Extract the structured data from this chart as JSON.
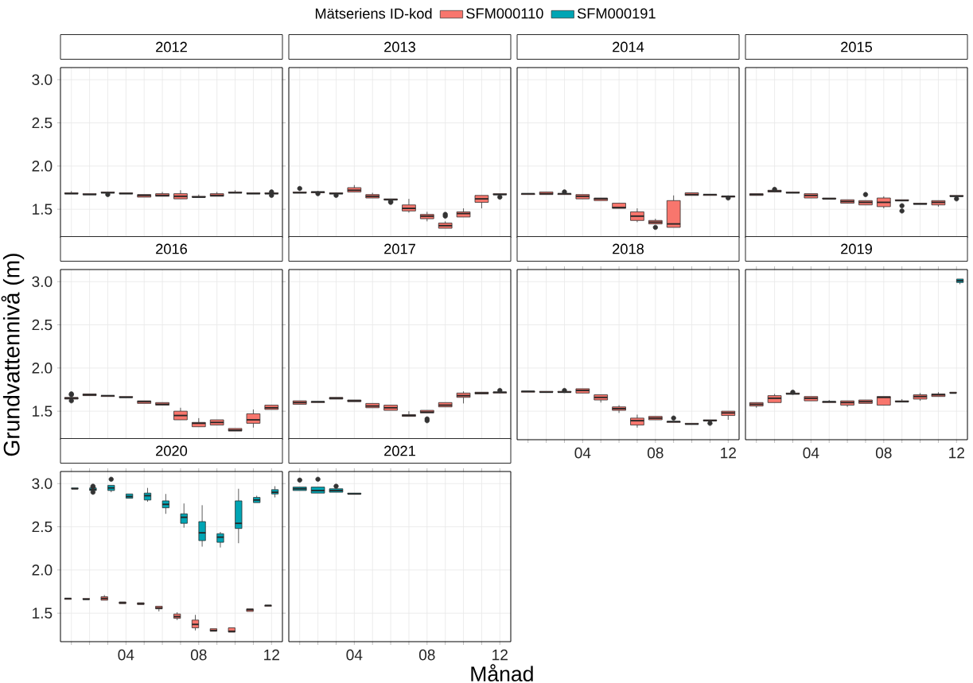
{
  "chart_data": [
    {
      "type": "box",
      "title": "2012",
      "categories": [
        null,
        null,
        null,
        "04",
        null,
        null,
        null,
        "08",
        null,
        null,
        null,
        "12"
      ],
      "ylim": [
        1.17,
        3.14
      ],
      "yticks": [
        {
          "value": 1.5,
          "label": "1.5"
        },
        {
          "value": 2,
          "label": "2.0"
        },
        {
          "value": 2.5,
          "label": "2.5"
        },
        {
          "value": 3,
          "label": "3.0"
        }
      ],
      "grid": true,
      "tick_labels": "y",
      "series": [
        {
          "color": "#F8766D",
          "boxes": [
            {
              "low": 1.68,
              "q1": 1.68,
              "median": 1.68,
              "q3": 1.69,
              "high": 1.71
            },
            {
              "low": 1.67,
              "q1": 1.67,
              "median": 1.67,
              "q3": 1.68,
              "high": 1.68
            },
            {
              "low": 1.69,
              "q1": 1.69,
              "median": 1.69,
              "q3": 1.7,
              "high": 1.7,
              "outliers": [
                1.67
              ]
            },
            {
              "low": 1.68,
              "q1": 1.68,
              "median": 1.68,
              "q3": 1.69,
              "high": 1.69
            },
            {
              "low": 1.64,
              "q1": 1.64,
              "median": 1.66,
              "q3": 1.67,
              "high": 1.67
            },
            {
              "low": 1.65,
              "q1": 1.65,
              "median": 1.66,
              "q3": 1.68,
              "high": 1.7
            },
            {
              "low": 1.62,
              "q1": 1.62,
              "median": 1.65,
              "q3": 1.68,
              "high": 1.72
            },
            {
              "low": 1.64,
              "q1": 1.64,
              "median": 1.64,
              "q3": 1.65,
              "high": 1.67
            },
            {
              "low": 1.65,
              "q1": 1.65,
              "median": 1.66,
              "q3": 1.68,
              "high": 1.7
            },
            {
              "low": 1.69,
              "q1": 1.69,
              "median": 1.69,
              "q3": 1.7,
              "high": 1.72
            },
            {
              "low": 1.68,
              "q1": 1.68,
              "median": 1.68,
              "q3": 1.69,
              "high": 1.69
            },
            {
              "low": 1.68,
              "q1": 1.68,
              "median": 1.68,
              "q3": 1.69,
              "high": 1.69,
              "outliers": [
                1.66,
                1.7
              ]
            }
          ]
        }
      ]
    },
    {
      "type": "box",
      "title": "2013",
      "categories": [
        null,
        null,
        null,
        "04",
        null,
        null,
        null,
        "08",
        null,
        null,
        null,
        "12"
      ],
      "ylim": [
        1.17,
        3.14
      ],
      "yticks": [
        1.5,
        2,
        2.5,
        3
      ],
      "grid": true,
      "tick_labels": false,
      "series": [
        {
          "color": "#F8766D",
          "boxes": [
            {
              "low": 1.69,
              "q1": 1.69,
              "median": 1.69,
              "q3": 1.7,
              "high": 1.7,
              "outliers": [
                1.74
              ]
            },
            {
              "low": 1.69,
              "q1": 1.69,
              "median": 1.7,
              "q3": 1.7,
              "high": 1.7,
              "outliers": [
                1.68
              ]
            },
            {
              "low": 1.68,
              "q1": 1.68,
              "median": 1.68,
              "q3": 1.69,
              "high": 1.69,
              "outliers": [
                1.66
              ]
            },
            {
              "low": 1.7,
              "q1": 1.7,
              "median": 1.72,
              "q3": 1.75,
              "high": 1.78
            },
            {
              "low": 1.63,
              "q1": 1.63,
              "median": 1.65,
              "q3": 1.67,
              "high": 1.69
            },
            {
              "low": 1.61,
              "q1": 1.61,
              "median": 1.61,
              "q3": 1.62,
              "high": 1.62,
              "outliers": [
                1.58,
                1.59
              ]
            },
            {
              "low": 1.46,
              "q1": 1.48,
              "median": 1.51,
              "q3": 1.55,
              "high": 1.62
            },
            {
              "low": 1.36,
              "q1": 1.39,
              "median": 1.42,
              "q3": 1.44,
              "high": 1.47
            },
            {
              "low": 1.28,
              "q1": 1.28,
              "median": 1.31,
              "q3": 1.34,
              "high": 1.36,
              "outliers": [
                1.42,
                1.44
              ]
            },
            {
              "low": 1.41,
              "q1": 1.41,
              "median": 1.45,
              "q3": 1.47,
              "high": 1.51
            },
            {
              "low": 1.51,
              "q1": 1.58,
              "median": 1.62,
              "q3": 1.66,
              "high": 1.66
            },
            {
              "low": 1.67,
              "q1": 1.67,
              "median": 1.67,
              "q3": 1.68,
              "high": 1.68,
              "outliers": [
                1.64
              ]
            }
          ]
        }
      ]
    },
    {
      "type": "box",
      "title": "2014",
      "categories": [
        null,
        null,
        null,
        "04",
        null,
        null,
        null,
        "08",
        null,
        null,
        null,
        "12"
      ],
      "ylim": [
        1.17,
        3.14
      ],
      "yticks": [
        1.5,
        2,
        2.5,
        3
      ],
      "grid": true,
      "tick_labels": false,
      "series": [
        {
          "color": "#F8766D",
          "boxes": [
            {
              "low": 1.67,
              "q1": 1.67,
              "median": 1.68,
              "q3": 1.68,
              "high": 1.68
            },
            {
              "low": 1.67,
              "q1": 1.67,
              "median": 1.68,
              "q3": 1.7,
              "high": 1.7
            },
            {
              "low": 1.67,
              "q1": 1.67,
              "median": 1.68,
              "q3": 1.68,
              "high": 1.68,
              "outliers": [
                1.7
              ]
            },
            {
              "low": 1.62,
              "q1": 1.62,
              "median": 1.65,
              "q3": 1.67,
              "high": 1.67
            },
            {
              "low": 1.6,
              "q1": 1.6,
              "median": 1.62,
              "q3": 1.63,
              "high": 1.63
            },
            {
              "low": 1.51,
              "q1": 1.51,
              "median": 1.52,
              "q3": 1.57,
              "high": 1.57
            },
            {
              "low": 1.35,
              "q1": 1.37,
              "median": 1.42,
              "q3": 1.47,
              "high": 1.51
            },
            {
              "low": 1.33,
              "q1": 1.33,
              "median": 1.35,
              "q3": 1.37,
              "high": 1.39,
              "outliers": [
                1.29
              ]
            },
            {
              "low": 1.29,
              "q1": 1.29,
              "median": 1.33,
              "q3": 1.6,
              "high": 1.66
            },
            {
              "low": 1.66,
              "q1": 1.66,
              "median": 1.67,
              "q3": 1.69,
              "high": 1.69
            },
            {
              "low": 1.66,
              "q1": 1.66,
              "median": 1.67,
              "q3": 1.67,
              "high": 1.67
            },
            {
              "low": 1.64,
              "q1": 1.64,
              "median": 1.65,
              "q3": 1.65,
              "high": 1.65,
              "outliers": [
                1.63
              ]
            }
          ]
        }
      ]
    },
    {
      "type": "box",
      "title": "2015",
      "categories": [
        null,
        null,
        null,
        "04",
        null,
        null,
        null,
        "08",
        null,
        null,
        null,
        "12"
      ],
      "ylim": [
        1.17,
        3.14
      ],
      "yticks": [
        1.5,
        2,
        2.5,
        3
      ],
      "grid": true,
      "tick_labels": false,
      "series": [
        {
          "color": "#F8766D",
          "boxes": [
            {
              "low": 1.66,
              "q1": 1.66,
              "median": 1.67,
              "q3": 1.68,
              "high": 1.68
            },
            {
              "low": 1.7,
              "q1": 1.7,
              "median": 1.71,
              "q3": 1.72,
              "high": 1.72,
              "outliers": [
                1.73
              ]
            },
            {
              "low": 1.69,
              "q1": 1.69,
              "median": 1.69,
              "q3": 1.7,
              "high": 1.7
            },
            {
              "low": 1.63,
              "q1": 1.63,
              "median": 1.66,
              "q3": 1.68,
              "high": 1.68
            },
            {
              "low": 1.62,
              "q1": 1.62,
              "median": 1.62,
              "q3": 1.63,
              "high": 1.63
            },
            {
              "low": 1.57,
              "q1": 1.57,
              "median": 1.59,
              "q3": 1.61,
              "high": 1.61
            },
            {
              "low": 1.55,
              "q1": 1.55,
              "median": 1.58,
              "q3": 1.6,
              "high": 1.6,
              "outliers": [
                1.67
              ]
            },
            {
              "low": 1.51,
              "q1": 1.53,
              "median": 1.58,
              "q3": 1.63,
              "high": 1.65
            },
            {
              "low": 1.6,
              "q1": 1.6,
              "median": 1.6,
              "q3": 1.61,
              "high": 1.61,
              "outliers": [
                1.48,
                1.54
              ]
            },
            {
              "low": 1.56,
              "q1": 1.56,
              "median": 1.56,
              "q3": 1.57,
              "high": 1.57
            },
            {
              "low": 1.53,
              "q1": 1.55,
              "median": 1.58,
              "q3": 1.6,
              "high": 1.6
            },
            {
              "low": 1.65,
              "q1": 1.65,
              "median": 1.65,
              "q3": 1.66,
              "high": 1.66,
              "outliers": [
                1.62
              ]
            }
          ]
        }
      ]
    },
    {
      "type": "box",
      "title": "2016",
      "ylabel": "Grundvattennivå (m)",
      "categories": [
        null,
        null,
        null,
        "04",
        null,
        null,
        null,
        "08",
        null,
        null,
        null,
        "12"
      ],
      "ylim": [
        1.17,
        3.14
      ],
      "yticks": [
        {
          "value": 1.5,
          "label": "1.5"
        },
        {
          "value": 2,
          "label": "2.0"
        },
        {
          "value": 2.5,
          "label": "2.5"
        },
        {
          "value": 3,
          "label": "3.0"
        }
      ],
      "grid": true,
      "tick_labels": "y",
      "series": [
        {
          "color": "#F8766D",
          "boxes": [
            {
              "low": 1.64,
              "q1": 1.64,
              "median": 1.65,
              "q3": 1.66,
              "high": 1.66,
              "outliers": [
                1.62,
                1.69,
                1.7
              ]
            },
            {
              "low": 1.68,
              "q1": 1.68,
              "median": 1.69,
              "q3": 1.7,
              "high": 1.7
            },
            {
              "low": 1.67,
              "q1": 1.67,
              "median": 1.68,
              "q3": 1.68,
              "high": 1.68
            },
            {
              "low": 1.66,
              "q1": 1.66,
              "median": 1.66,
              "q3": 1.67,
              "high": 1.67
            },
            {
              "low": 1.59,
              "q1": 1.59,
              "median": 1.61,
              "q3": 1.62,
              "high": 1.62
            },
            {
              "low": 1.57,
              "q1": 1.57,
              "median": 1.58,
              "q3": 1.6,
              "high": 1.6
            },
            {
              "low": 1.4,
              "q1": 1.4,
              "median": 1.45,
              "q3": 1.5,
              "high": 1.54
            },
            {
              "low": 1.32,
              "q1": 1.32,
              "median": 1.36,
              "q3": 1.37,
              "high": 1.42
            },
            {
              "low": 1.34,
              "q1": 1.34,
              "median": 1.37,
              "q3": 1.4,
              "high": 1.4
            },
            {
              "low": 1.27,
              "q1": 1.27,
              "median": 1.28,
              "q3": 1.3,
              "high": 1.3
            },
            {
              "low": 1.31,
              "q1": 1.36,
              "median": 1.4,
              "q3": 1.47,
              "high": 1.52
            },
            {
              "low": 1.52,
              "q1": 1.52,
              "median": 1.54,
              "q3": 1.57,
              "high": 1.57
            }
          ]
        }
      ]
    },
    {
      "type": "box",
      "title": "2017",
      "categories": [
        null,
        null,
        null,
        "04",
        null,
        null,
        null,
        "08",
        null,
        null,
        null,
        "12"
      ],
      "ylim": [
        1.17,
        3.14
      ],
      "yticks": [
        1.5,
        2,
        2.5,
        3
      ],
      "grid": true,
      "tick_labels": false,
      "series": [
        {
          "color": "#F8766D",
          "boxes": [
            {
              "low": 1.58,
              "q1": 1.58,
              "median": 1.6,
              "q3": 1.62,
              "high": 1.62
            },
            {
              "low": 1.6,
              "q1": 1.6,
              "median": 1.61,
              "q3": 1.61,
              "high": 1.61
            },
            {
              "low": 1.64,
              "q1": 1.64,
              "median": 1.65,
              "q3": 1.66,
              "high": 1.66
            },
            {
              "low": 1.61,
              "q1": 1.61,
              "median": 1.62,
              "q3": 1.63,
              "high": 1.63
            },
            {
              "low": 1.54,
              "q1": 1.54,
              "median": 1.56,
              "q3": 1.59,
              "high": 1.59
            },
            {
              "low": 1.51,
              "q1": 1.51,
              "median": 1.54,
              "q3": 1.57,
              "high": 1.57
            },
            {
              "low": 1.44,
              "q1": 1.44,
              "median": 1.45,
              "q3": 1.46,
              "high": 1.5
            },
            {
              "low": 1.48,
              "q1": 1.48,
              "median": 1.49,
              "q3": 1.51,
              "high": 1.51,
              "outliers": [
                1.39,
                1.41
              ]
            },
            {
              "low": 1.55,
              "q1": 1.55,
              "median": 1.57,
              "q3": 1.6,
              "high": 1.6
            },
            {
              "low": 1.59,
              "q1": 1.66,
              "median": 1.68,
              "q3": 1.71,
              "high": 1.73
            },
            {
              "low": 1.7,
              "q1": 1.7,
              "median": 1.71,
              "q3": 1.72,
              "high": 1.72
            },
            {
              "low": 1.71,
              "q1": 1.71,
              "median": 1.72,
              "q3": 1.72,
              "high": 1.72,
              "outliers": [
                1.74
              ]
            }
          ]
        }
      ]
    },
    {
      "type": "box",
      "title": "2018",
      "categories": [
        null,
        null,
        null,
        "04",
        null,
        null,
        null,
        "08",
        null,
        null,
        null,
        "12"
      ],
      "ylim": [
        1.17,
        3.14
      ],
      "yticks": [
        1.5,
        2,
        2.5,
        3
      ],
      "grid": true,
      "tick_labels": "x",
      "series": [
        {
          "color": "#F8766D",
          "boxes": [
            {
              "low": 1.72,
              "q1": 1.72,
              "median": 1.73,
              "q3": 1.73,
              "high": 1.73
            },
            {
              "low": 1.72,
              "q1": 1.72,
              "median": 1.72,
              "q3": 1.73,
              "high": 1.73
            },
            {
              "low": 1.72,
              "q1": 1.72,
              "median": 1.72,
              "q3": 1.73,
              "high": 1.73,
              "outliers": [
                1.74
              ]
            },
            {
              "low": 1.71,
              "q1": 1.71,
              "median": 1.74,
              "q3": 1.76,
              "high": 1.76
            },
            {
              "low": 1.6,
              "q1": 1.63,
              "median": 1.66,
              "q3": 1.69,
              "high": 1.69
            },
            {
              "low": 1.48,
              "q1": 1.51,
              "median": 1.53,
              "q3": 1.55,
              "high": 1.57
            },
            {
              "low": 1.31,
              "q1": 1.34,
              "median": 1.39,
              "q3": 1.42,
              "high": 1.46
            },
            {
              "low": 1.4,
              "q1": 1.4,
              "median": 1.42,
              "q3": 1.44,
              "high": 1.44
            },
            {
              "low": 1.37,
              "q1": 1.37,
              "median": 1.38,
              "q3": 1.38,
              "high": 1.38,
              "outliers": [
                1.42
              ]
            },
            {
              "low": 1.35,
              "q1": 1.35,
              "median": 1.35,
              "q3": 1.36,
              "high": 1.36
            },
            {
              "low": 1.39,
              "q1": 1.39,
              "median": 1.39,
              "q3": 1.4,
              "high": 1.4,
              "outliers": [
                1.36
              ]
            },
            {
              "low": 1.4,
              "q1": 1.45,
              "median": 1.48,
              "q3": 1.5,
              "high": 1.5
            }
          ]
        }
      ]
    },
    {
      "type": "box",
      "title": "2019",
      "categories": [
        null,
        null,
        null,
        "04",
        null,
        null,
        null,
        "08",
        null,
        null,
        null,
        "12"
      ],
      "ylim": [
        1.17,
        3.14
      ],
      "yticks": [
        1.5,
        2,
        2.5,
        3
      ],
      "grid": true,
      "tick_labels": "x",
      "series": [
        {
          "color": "#F8766D",
          "boxes": [
            {
              "low": 1.54,
              "q1": 1.56,
              "median": 1.58,
              "q3": 1.6,
              "high": 1.6
            },
            {
              "low": 1.6,
              "q1": 1.6,
              "median": 1.65,
              "q3": 1.68,
              "high": 1.7
            },
            {
              "low": 1.7,
              "q1": 1.7,
              "median": 1.7,
              "q3": 1.71,
              "high": 1.71,
              "outliers": [
                1.72
              ]
            },
            {
              "low": 1.62,
              "q1": 1.62,
              "median": 1.65,
              "q3": 1.67,
              "high": 1.67
            },
            {
              "low": 1.6,
              "q1": 1.6,
              "median": 1.61,
              "q3": 1.61,
              "high": 1.63
            },
            {
              "low": 1.55,
              "q1": 1.57,
              "median": 1.6,
              "q3": 1.62,
              "high": 1.62
            },
            {
              "low": 1.59,
              "q1": 1.59,
              "median": 1.61,
              "q3": 1.63,
              "high": 1.63
            },
            {
              "low": 1.57,
              "q1": 1.57,
              "median": 1.66,
              "q3": 1.67,
              "high": 1.67
            },
            {
              "low": 1.61,
              "q1": 1.61,
              "median": 1.61,
              "q3": 1.62,
              "high": 1.64
            },
            {
              "low": 1.62,
              "q1": 1.64,
              "median": 1.67,
              "q3": 1.69,
              "high": 1.71
            },
            {
              "low": 1.67,
              "q1": 1.67,
              "median": 1.69,
              "q3": 1.7,
              "high": 1.72
            },
            {
              "low": 1.71,
              "q1": 1.71,
              "median": 1.71,
              "q3": 1.72,
              "high": 1.72
            }
          ]
        },
        {
          "color": "#00A5B4",
          "boxes": [
            null,
            null,
            null,
            null,
            null,
            null,
            null,
            null,
            null,
            null,
            null,
            {
              "low": 2.97,
              "q1": 2.99,
              "median": 3.01,
              "q3": 3.03,
              "high": 3.03
            }
          ]
        }
      ]
    },
    {
      "type": "box",
      "title": "2020",
      "legend": "top",
      "legend_title": "Mätseriens ID-kod",
      "categories": [
        null,
        null,
        null,
        "04",
        null,
        null,
        null,
        "08",
        null,
        null,
        null,
        "12"
      ],
      "ylim": [
        1.17,
        3.14
      ],
      "yticks": [
        {
          "value": 1.5,
          "label": "1.5"
        },
        {
          "value": 2,
          "label": "2.0"
        },
        {
          "value": 2.5,
          "label": "2.5"
        },
        {
          "value": 3,
          "label": "3.0"
        }
      ],
      "grid": true,
      "series": [
        {
          "name": "SFM000110",
          "color": "#F8766D",
          "boxes": [
            {
              "low": 1.66,
              "q1": 1.66,
              "median": 1.67,
              "q3": 1.67,
              "high": 1.67
            },
            {
              "low": 1.66,
              "q1": 1.66,
              "median": 1.66,
              "q3": 1.67,
              "high": 1.67
            },
            {
              "low": 1.65,
              "q1": 1.65,
              "median": 1.67,
              "q3": 1.69,
              "high": 1.71
            },
            {
              "low": 1.61,
              "q1": 1.61,
              "median": 1.62,
              "q3": 1.63,
              "high": 1.63
            },
            {
              "low": 1.6,
              "q1": 1.6,
              "median": 1.61,
              "q3": 1.62,
              "high": 1.62
            },
            {
              "low": 1.52,
              "q1": 1.55,
              "median": 1.56,
              "q3": 1.58,
              "high": 1.58
            },
            {
              "low": 1.42,
              "q1": 1.44,
              "median": 1.46,
              "q3": 1.49,
              "high": 1.51
            },
            {
              "low": 1.3,
              "q1": 1.33,
              "median": 1.37,
              "q3": 1.42,
              "high": 1.48
            },
            {
              "low": 1.29,
              "q1": 1.29,
              "median": 1.3,
              "q3": 1.32,
              "high": 1.32
            },
            {
              "low": 1.28,
              "q1": 1.28,
              "median": 1.29,
              "q3": 1.33,
              "high": 1.33
            },
            {
              "low": 1.52,
              "q1": 1.52,
              "median": 1.54,
              "q3": 1.55,
              "high": 1.55
            },
            {
              "low": 1.58,
              "q1": 1.58,
              "median": 1.59,
              "q3": 1.59,
              "high": 1.59
            }
          ]
        },
        {
          "name": "SFM000191",
          "color": "#00A5B4",
          "boxes": [
            {
              "low": 2.94,
              "q1": 2.94,
              "median": 2.94,
              "q3": 2.95,
              "high": 2.95
            },
            {
              "low": 2.92,
              "q1": 2.92,
              "median": 2.93,
              "q3": 2.95,
              "high": 2.95,
              "outliers": [
                2.9,
                2.96,
                2.97
              ]
            },
            {
              "low": 2.9,
              "q1": 2.92,
              "median": 2.95,
              "q3": 2.98,
              "high": 2.98,
              "outliers": [
                3.05
              ]
            },
            {
              "low": 2.83,
              "q1": 2.83,
              "median": 2.85,
              "q3": 2.88,
              "high": 2.88
            },
            {
              "low": 2.79,
              "q1": 2.81,
              "median": 2.86,
              "q3": 2.89,
              "high": 2.95
            },
            {
              "low": 2.65,
              "q1": 2.72,
              "median": 2.76,
              "q3": 2.8,
              "high": 2.88
            },
            {
              "low": 2.49,
              "q1": 2.54,
              "median": 2.61,
              "q3": 2.65,
              "high": 2.77
            },
            {
              "low": 2.27,
              "q1": 2.34,
              "median": 2.43,
              "q3": 2.56,
              "high": 2.75
            },
            {
              "low": 2.26,
              "q1": 2.32,
              "median": 2.38,
              "q3": 2.42,
              "high": 2.44
            },
            {
              "low": 2.31,
              "q1": 2.48,
              "median": 2.54,
              "q3": 2.8,
              "high": 2.94
            },
            {
              "low": 2.78,
              "q1": 2.78,
              "median": 2.81,
              "q3": 2.84,
              "high": 2.86
            },
            {
              "low": 2.84,
              "q1": 2.88,
              "median": 2.9,
              "q3": 2.93,
              "high": 2.97
            }
          ]
        }
      ]
    },
    {
      "type": "box",
      "title": "2021",
      "xlabel": "Månad",
      "categories": [
        null,
        null,
        null,
        "04",
        null,
        null,
        null,
        "08",
        null,
        null,
        null,
        "12"
      ],
      "ylim": [
        1.17,
        3.14
      ],
      "yticks": [
        1.5,
        2,
        2.5,
        3
      ],
      "grid": true,
      "tick_labels": "x",
      "series": [
        {
          "color": "#00A5B4",
          "boxes": [
            {
              "low": 2.92,
              "q1": 2.92,
              "median": 2.94,
              "q3": 2.96,
              "high": 2.96,
              "outliers": [
                3.04
              ]
            },
            {
              "low": 2.89,
              "q1": 2.89,
              "median": 2.92,
              "q3": 2.96,
              "high": 2.96,
              "outliers": [
                3.05
              ]
            },
            {
              "low": 2.9,
              "q1": 2.9,
              "median": 2.92,
              "q3": 2.94,
              "high": 2.94,
              "outliers": [
                2.97
              ]
            },
            {
              "low": 2.88,
              "q1": 2.88,
              "median": 2.88,
              "q3": 2.89,
              "high": 2.89
            },
            null,
            null,
            null,
            null,
            null,
            null,
            null,
            null
          ]
        }
      ]
    }
  ]
}
